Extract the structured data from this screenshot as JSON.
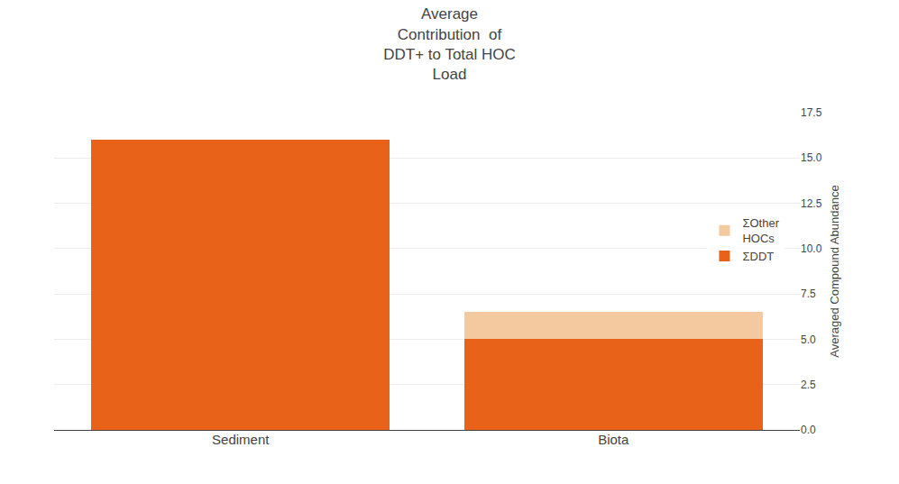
{
  "chart_data": {
    "type": "bar",
    "title": "Average\nContribution  of\nDDT+ to Total HOC\nLoad",
    "categories": [
      "Sediment",
      "Biota"
    ],
    "series": [
      {
        "name": "ΣDDT",
        "color": "#E8621A",
        "values": [
          16.0,
          5.0
        ]
      },
      {
        "name": "ΣOther\nHOCs",
        "color": "#F5C9A0",
        "values": [
          0.0,
          1.5
        ]
      }
    ],
    "ylabel": "Averaged Compound Abundance",
    "ylim": [
      0,
      17.5
    ],
    "yticks": [
      {
        "value": 0,
        "label": "0.0"
      },
      2.5,
      {
        "value": 5,
        "label": "5.0"
      },
      7.5,
      {
        "value": 10,
        "label": "10.0"
      },
      12.5,
      {
        "value": 15,
        "label": "15.0"
      },
      17.5
    ],
    "stacked": true,
    "grid": true,
    "legend": "right"
  }
}
